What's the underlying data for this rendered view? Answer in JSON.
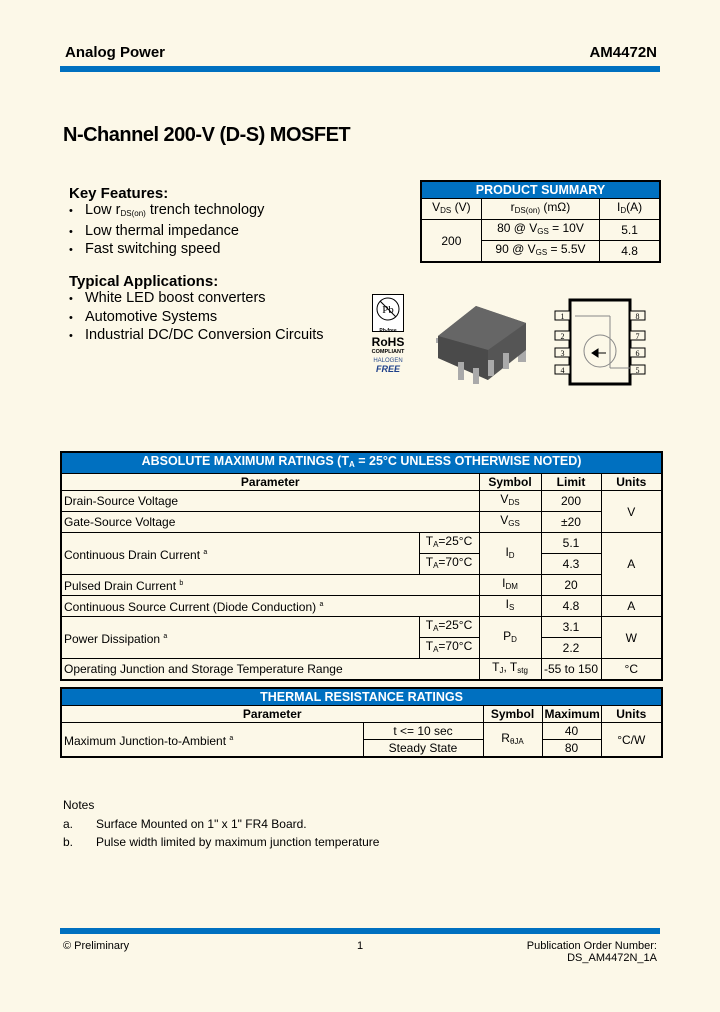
{
  "header": {
    "company": "Analog Power",
    "part_number": "AM4472N"
  },
  "title": "N-Channel 200-V (D-S) MOSFET",
  "key_features": {
    "title": "Key Features:",
    "items": [
      {
        "pre": "Low ",
        "sym": "r",
        "sub": "DS(on)",
        "post": " trench technology"
      },
      {
        "pre": "Low thermal impedance"
      },
      {
        "pre": "Fast switching speed"
      }
    ]
  },
  "applications": {
    "title": "Typical Applications:",
    "items": [
      "White LED boost converters",
      "Automotive Systems",
      "Industrial DC/DC Conversion Circuits"
    ]
  },
  "product_summary": {
    "title": "PRODUCT SUMMARY",
    "col_vds": "V",
    "col_vds_sub": "DS",
    "col_vds_unit": " (V)",
    "col_rds": "r",
    "col_rds_sub": "DS(on)",
    "col_rds_unit": " (mΩ)",
    "col_id": "I",
    "col_id_sub": "D",
    "col_id_unit": "(A)",
    "vds": "200",
    "rows": [
      {
        "r1": "80 @ V",
        "sub": "GS",
        "r2": " = 10V",
        "id": "5.1"
      },
      {
        "r1": "90 @ V",
        "sub": "GS",
        "r2": " = 5.5V",
        "id": "4.8"
      }
    ]
  },
  "badges": {
    "pbfree": "Pb-free",
    "rohs": "RoHS",
    "compliant": "COMPLIANT",
    "halogen": "HALOGEN",
    "free": "FREE"
  },
  "pinout": [
    "1",
    "2",
    "3",
    "4",
    "8",
    "7",
    "6",
    "5"
  ],
  "abs_max": {
    "title_pre": "ABSOLUTE MAXIMUM RATINGS (T",
    "title_sub": "A",
    "title_post": " = 25°C UNLESS OTHERWISE NOTED)",
    "headers": [
      "Parameter",
      "Symbol",
      "Limit",
      "Units"
    ],
    "rows": {
      "vds": {
        "param": "Drain-Source Voltage",
        "sym": "V",
        "sub": "DS",
        "limit": "200"
      },
      "vgs": {
        "param": "Gate-Source Voltage",
        "sym": "V",
        "sub": "GS",
        "limit": "±20"
      },
      "vunit": "V",
      "id": {
        "param": "Continuous Drain Current",
        "note": "a",
        "c1": "=25°C",
        "c2": "=70°C",
        "sym": "I",
        "sub": "D",
        "l1": "5.1",
        "l2": "4.3"
      },
      "idm": {
        "param": "Pulsed Drain Current",
        "note": "b",
        "sym": "I",
        "sub": "DM",
        "limit": "20"
      },
      "aunit": "A",
      "is": {
        "param": "Continuous Source Current (Diode Conduction)",
        "note": "a",
        "sym": "I",
        "sub": "S",
        "limit": "4.8",
        "unit": "A"
      },
      "pd": {
        "param": "Power Dissipation",
        "note": "a",
        "c1": "=25°C",
        "c2": "=70°C",
        "sym": "P",
        "sub": "D",
        "l1": "3.1",
        "l2": "2.2",
        "unit": "W"
      },
      "tj": {
        "param": "Operating Junction and Storage Temperature Range",
        "sym1": "T",
        "sub1": "J",
        "sym2": ", T",
        "sub2": "stg",
        "limit": "-55 to 150",
        "unit": "°C"
      }
    },
    "ta": "T",
    "ta_sub": "A"
  },
  "thermal": {
    "title": "THERMAL RESISTANCE RATINGS",
    "headers": [
      "Parameter",
      "Symbol",
      "Maximum",
      "Units"
    ],
    "param": "Maximum Junction-to-Ambient",
    "note": "a",
    "c1": "t <= 10 sec",
    "c2": "Steady State",
    "sym": "R",
    "sub": "θJA",
    "l1": "40",
    "l2": "80",
    "unit": "°C/W"
  },
  "notes": {
    "title": "Notes",
    "items": [
      {
        "k": "a.",
        "v": "Surface Mounted on 1\" x 1\" FR4 Board."
      },
      {
        "k": "b.",
        "v": "Pulse width limited by maximum junction temperature"
      }
    ]
  },
  "footer": {
    "left": "© Preliminary",
    "page": "1",
    "right1": "Publication Order Number:",
    "right2": "DS_AM4472N_1A"
  },
  "colors": {
    "accent": "#0070c0",
    "background": "#fcf8e8"
  }
}
